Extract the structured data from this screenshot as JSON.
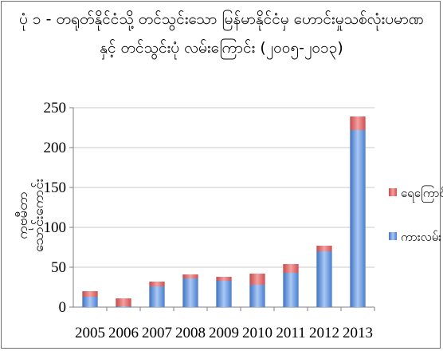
{
  "chart_data": {
    "type": "bar",
    "stacked": true,
    "title_lines": [
      "ပုံ ၁ - တရုတ်နိုင်ငံသို့ တင်သွင်းသော မြန်မာနိုင်ငံမှ ဟောင်းမှုသစ်လုံးပမာဏ",
      "နှင့် တင်သွင်းပုံ လမ်းကြောင်း (၂၀၀၅-၂၀၁၃)"
    ],
    "ylabel_lines": [
      "ကုဗမီတာ",
      "သောင်းကောင်း"
    ],
    "xlabel": "",
    "categories": [
      "2005",
      "2006",
      "2007",
      "2008",
      "2009",
      "2010",
      "2011",
      "2012",
      "2013"
    ],
    "ylim": [
      0,
      250
    ],
    "yticks": [
      0,
      50,
      100,
      150,
      200,
      250
    ],
    "grid": true,
    "legend_position": "right",
    "series": [
      {
        "name": "ကားလမ်း",
        "color": "#6f9fe0",
        "values": [
          13,
          1,
          26,
          36,
          33,
          28,
          43,
          70,
          222
        ]
      },
      {
        "name": "ရေကြောင်း",
        "color": "#e05a5a",
        "values": [
          7,
          10,
          6,
          5,
          5,
          14,
          11,
          7,
          17
        ]
      }
    ]
  }
}
